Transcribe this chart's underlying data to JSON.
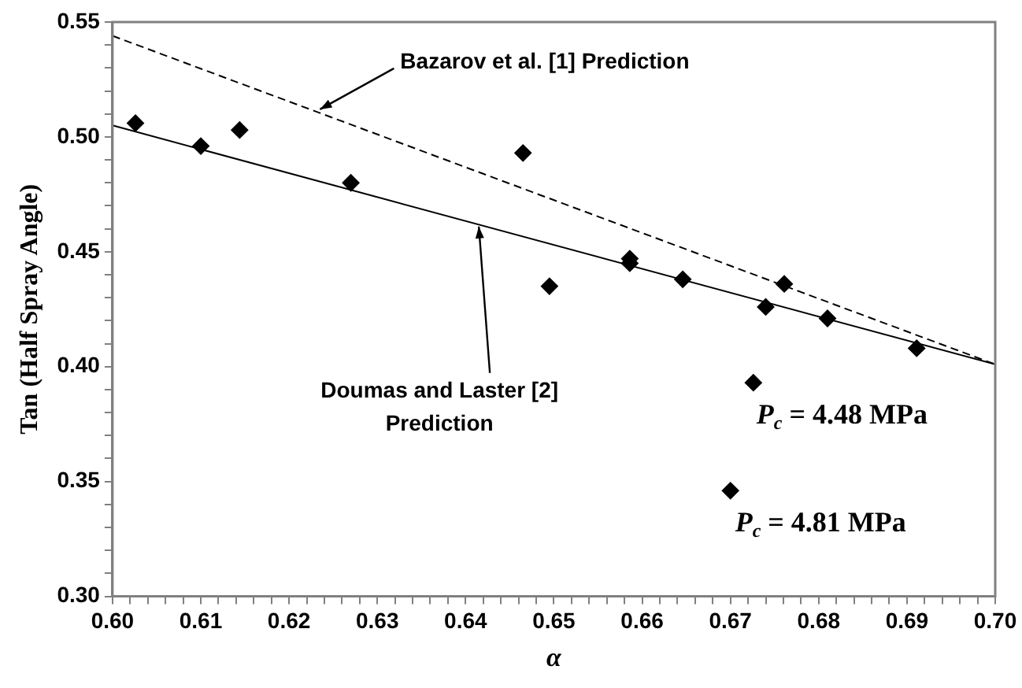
{
  "chart_data": {
    "type": "scatter",
    "xlabel": "α",
    "ylabel": "Tan (Half Spray Angle)",
    "xlim": [
      0.6,
      0.7
    ],
    "xticks": [
      {
        "value": 0.6,
        "label": "0.60"
      },
      {
        "value": 0.602,
        "label": null
      },
      {
        "value": 0.604,
        "label": null
      },
      {
        "value": 0.606,
        "label": null
      },
      {
        "value": 0.608,
        "label": null
      },
      0.61,
      {
        "value": 0.612,
        "label": null
      },
      {
        "value": 0.614,
        "label": null
      },
      {
        "value": 0.616,
        "label": null
      },
      {
        "value": 0.618,
        "label": null
      },
      0.62,
      {
        "value": 0.622,
        "label": null
      },
      {
        "value": 0.624,
        "label": null
      },
      {
        "value": 0.626,
        "label": null
      },
      {
        "value": 0.628,
        "label": null
      },
      0.63,
      {
        "value": 0.632,
        "label": null
      },
      {
        "value": 0.634,
        "label": null
      },
      {
        "value": 0.636,
        "label": null
      },
      {
        "value": 0.638,
        "label": null
      },
      0.64,
      {
        "value": 0.642,
        "label": null
      },
      {
        "value": 0.644,
        "label": null
      },
      {
        "value": 0.646,
        "label": null
      },
      {
        "value": 0.648,
        "label": null
      },
      0.65,
      {
        "value": 0.652,
        "label": null
      },
      {
        "value": 0.654,
        "label": null
      },
      {
        "value": 0.656,
        "label": null
      },
      {
        "value": 0.658,
        "label": null
      },
      0.66,
      {
        "value": 0.662,
        "label": null
      },
      {
        "value": 0.664,
        "label": null
      },
      {
        "value": 0.666,
        "label": null
      },
      {
        "value": 0.668,
        "label": null
      },
      0.67,
      {
        "value": 0.672,
        "label": null
      },
      {
        "value": 0.674,
        "label": null
      },
      {
        "value": 0.676,
        "label": null
      },
      {
        "value": 0.678,
        "label": null
      },
      0.68,
      {
        "value": 0.682,
        "label": null
      },
      {
        "value": 0.684,
        "label": null
      },
      {
        "value": 0.686,
        "label": null
      },
      {
        "value": 0.688,
        "label": null
      },
      0.69,
      {
        "value": 0.692,
        "label": null
      },
      {
        "value": 0.694,
        "label": null
      },
      {
        "value": 0.696,
        "label": null
      },
      {
        "value": 0.698,
        "label": null
      },
      {
        "value": 0.7,
        "label": "0.70"
      }
    ],
    "ylim": [
      0.3,
      0.55
    ],
    "yticks": [
      {
        "value": 0.3,
        "label": "0.30"
      },
      {
        "value": 0.31,
        "label": null
      },
      {
        "value": 0.32,
        "label": null
      },
      {
        "value": 0.33,
        "label": null
      },
      {
        "value": 0.34,
        "label": null
      },
      0.35,
      {
        "value": 0.36,
        "label": null
      },
      {
        "value": 0.37,
        "label": null
      },
      {
        "value": 0.38,
        "label": null
      },
      {
        "value": 0.39,
        "label": null
      },
      {
        "value": 0.4,
        "label": "0.40"
      },
      {
        "value": 0.41,
        "label": null
      },
      {
        "value": 0.42,
        "label": null
      },
      {
        "value": 0.43,
        "label": null
      },
      {
        "value": 0.44,
        "label": null
      },
      0.45,
      {
        "value": 0.46,
        "label": null
      },
      {
        "value": 0.47,
        "label": null
      },
      {
        "value": 0.48,
        "label": null
      },
      {
        "value": 0.49,
        "label": null
      },
      {
        "value": 0.5,
        "label": "0.50"
      },
      {
        "value": 0.51,
        "label": null
      },
      {
        "value": 0.52,
        "label": null
      },
      {
        "value": 0.53,
        "label": null
      },
      {
        "value": 0.54,
        "label": null
      },
      0.55
    ],
    "grid": false,
    "legend": false,
    "series": [
      {
        "marker": "diamond",
        "color": "#000000",
        "x": [
          0.6026,
          0.61,
          0.6144,
          0.627,
          0.6465,
          0.6495,
          0.6586,
          0.6586,
          0.6646,
          0.674,
          0.6761,
          0.681,
          0.6911,
          0.6726,
          0.67
        ],
        "values": [
          0.506,
          0.496,
          0.503,
          0.48,
          0.493,
          0.435,
          0.447,
          0.445,
          0.438,
          0.426,
          0.436,
          0.421,
          0.408,
          0.393,
          0.346
        ]
      },
      {
        "type": "line",
        "marker": "none",
        "line_style": "dashed",
        "color": "#000000",
        "x": [
          0.6,
          0.7
        ],
        "values": [
          0.544,
          0.401
        ]
      },
      {
        "type": "line",
        "marker": "none",
        "line_style": "solid",
        "color": "#000000",
        "x": [
          0.6,
          0.7
        ],
        "values": [
          0.505,
          0.401
        ]
      }
    ],
    "annotations": [
      {
        "text": "Bazarov et al. [1] Prediction",
        "x": 0.6235,
        "y": 0.512
      },
      {
        "text": "Doumas and Laster [2]\nPrediction",
        "x": 0.6415,
        "y": 0.461
      },
      {
        "text": "P$_{c}$ = 4.48 MPa",
        "x": 0.6726,
        "y": 0.393
      },
      {
        "text": "P$_{c}$ = 4.81 MPa",
        "x": 0.67,
        "y": 0.346
      }
    ]
  }
}
